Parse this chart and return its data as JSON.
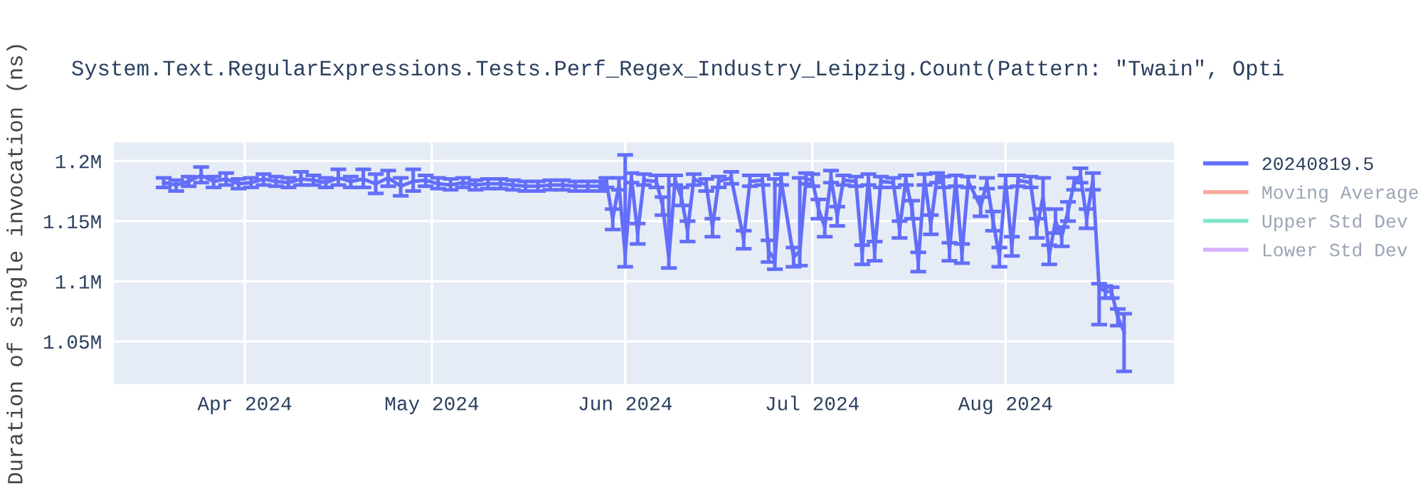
{
  "chart_data": {
    "type": "line",
    "title": "System.Text.RegularExpressions.Tests.Perf_Regex_Industry_Leipzig.Count(Pattern: \"Twain\", Opti",
    "ylabel": "Duration of single invocation (ns)",
    "x": [
      "2024-03-19",
      "2024-03-21",
      "2024-03-23",
      "2024-03-25",
      "2024-03-27",
      "2024-03-29",
      "2024-03-31",
      "2024-04-02",
      "2024-04-04",
      "2024-04-06",
      "2024-04-08",
      "2024-04-10",
      "2024-04-12",
      "2024-04-14",
      "2024-04-16",
      "2024-04-18",
      "2024-04-20",
      "2024-04-22",
      "2024-04-24",
      "2024-04-26",
      "2024-04-28",
      "2024-04-30",
      "2024-05-02",
      "2024-05-04",
      "2024-05-06",
      "2024-05-08",
      "2024-05-10",
      "2024-05-12",
      "2024-05-14",
      "2024-05-16",
      "2024-05-18",
      "2024-05-20",
      "2024-05-22",
      "2024-05-24",
      "2024-05-26",
      "2024-05-28",
      "2024-05-29",
      "2024-05-30",
      "2024-05-31",
      "2024-06-01",
      "2024-06-02",
      "2024-06-03",
      "2024-06-04",
      "2024-06-06",
      "2024-06-07",
      "2024-06-08",
      "2024-06-09",
      "2024-06-10",
      "2024-06-11",
      "2024-06-12",
      "2024-06-14",
      "2024-06-15",
      "2024-06-16",
      "2024-06-18",
      "2024-06-20",
      "2024-06-21",
      "2024-06-23",
      "2024-06-24",
      "2024-06-25",
      "2024-06-26",
      "2024-06-28",
      "2024-06-29",
      "2024-06-30",
      "2024-07-01",
      "2024-07-02",
      "2024-07-03",
      "2024-07-04",
      "2024-07-05",
      "2024-07-06",
      "2024-07-08",
      "2024-07-09",
      "2024-07-10",
      "2024-07-11",
      "2024-07-12",
      "2024-07-14",
      "2024-07-15",
      "2024-07-16",
      "2024-07-17",
      "2024-07-18",
      "2024-07-19",
      "2024-07-20",
      "2024-07-21",
      "2024-07-22",
      "2024-07-23",
      "2024-07-24",
      "2024-07-25",
      "2024-07-26",
      "2024-07-28",
      "2024-07-29",
      "2024-07-30",
      "2024-07-31",
      "2024-08-01",
      "2024-08-02",
      "2024-08-03",
      "2024-08-05",
      "2024-08-06",
      "2024-08-07",
      "2024-08-08",
      "2024-08-09",
      "2024-08-10",
      "2024-08-11",
      "2024-08-12",
      "2024-08-13",
      "2024-08-14",
      "2024-08-15",
      "2024-08-16",
      "2024-08-17",
      "2024-08-18",
      "2024-08-19",
      "2024-08-20"
    ],
    "series": [
      {
        "name": "20240819.5",
        "color": "#636efa",
        "values": [
          1182000,
          1180000,
          1183000,
          1188000,
          1183000,
          1185000,
          1181000,
          1182000,
          1185000,
          1183000,
          1182000,
          1185000,
          1184000,
          1182000,
          1186000,
          1183000,
          1185000,
          1181000,
          1186000,
          1179000,
          1183000,
          1184000,
          1181000,
          1180000,
          1182000,
          1180000,
          1181000,
          1181000,
          1180000,
          1179000,
          1179000,
          1180000,
          1180000,
          1179000,
          1179000,
          1179000,
          1182000,
          1152000,
          1180000,
          1122000,
          1186000,
          1140000,
          1184000,
          1183000,
          1163000,
          1120000,
          1184000,
          1170000,
          1142000,
          1185000,
          1180000,
          1145000,
          1183000,
          1186000,
          1135000,
          1183000,
          1184000,
          1125000,
          1118000,
          1184000,
          1120000,
          1125000,
          1185000,
          1184000,
          1160000,
          1145000,
          1186000,
          1154000,
          1184000,
          1183000,
          1122000,
          1184000,
          1125000,
          1183000,
          1182000,
          1143000,
          1184000,
          1160000,
          1116000,
          1185000,
          1147000,
          1186000,
          1183000,
          1125000,
          1184000,
          1123000,
          1183000,
          1162000,
          1182000,
          1150000,
          1120000,
          1183000,
          1129000,
          1184000,
          1182000,
          1144000,
          1170000,
          1122000,
          1150000,
          1137000,
          1158000,
          1182000,
          1188000,
          1152000,
          1184000,
          1094000,
          1092000,
          1091000,
          1070000,
          1058000
        ],
        "errors": [
          [
            1178000,
            1186000
          ],
          [
            1175000,
            1184000
          ],
          [
            1179000,
            1187000
          ],
          [
            1182000,
            1195000
          ],
          [
            1178000,
            1187000
          ],
          [
            1180000,
            1190000
          ],
          [
            1177000,
            1185000
          ],
          [
            1178000,
            1186000
          ],
          [
            1180000,
            1189000
          ],
          [
            1179000,
            1187000
          ],
          [
            1178000,
            1186000
          ],
          [
            1180000,
            1191000
          ],
          [
            1180000,
            1188000
          ],
          [
            1178000,
            1186000
          ],
          [
            1180000,
            1193000
          ],
          [
            1178000,
            1187000
          ],
          [
            1178000,
            1193000
          ],
          [
            1173000,
            1189000
          ],
          [
            1179000,
            1192000
          ],
          [
            1171000,
            1186000
          ],
          [
            1175000,
            1193000
          ],
          [
            1179000,
            1188000
          ],
          [
            1177000,
            1186000
          ],
          [
            1176000,
            1185000
          ],
          [
            1178000,
            1186000
          ],
          [
            1176000,
            1184000
          ],
          [
            1177000,
            1185000
          ],
          [
            1177000,
            1185000
          ],
          [
            1176000,
            1184000
          ],
          [
            1175000,
            1183000
          ],
          [
            1175000,
            1183000
          ],
          [
            1176000,
            1184000
          ],
          [
            1176000,
            1184000
          ],
          [
            1175000,
            1183000
          ],
          [
            1175000,
            1183000
          ],
          [
            1175000,
            1183000
          ],
          [
            1178000,
            1186000
          ],
          [
            1143000,
            1160000
          ],
          [
            1176000,
            1186000
          ],
          [
            1112000,
            1205000
          ],
          [
            1182000,
            1190000
          ],
          [
            1131000,
            1148000
          ],
          [
            1180000,
            1189000
          ],
          [
            1178000,
            1188000
          ],
          [
            1155000,
            1170000
          ],
          [
            1111000,
            1188000
          ],
          [
            1180000,
            1188000
          ],
          [
            1163000,
            1178000
          ],
          [
            1133000,
            1150000
          ],
          [
            1180000,
            1189000
          ],
          [
            1175000,
            1185000
          ],
          [
            1137000,
            1152000
          ],
          [
            1178000,
            1187000
          ],
          [
            1181000,
            1191000
          ],
          [
            1127000,
            1142000
          ],
          [
            1179000,
            1188000
          ],
          [
            1180000,
            1188000
          ],
          [
            1116000,
            1134000
          ],
          [
            1110000,
            1185000
          ],
          [
            1180000,
            1189000
          ],
          [
            1112000,
            1128000
          ],
          [
            1113000,
            1186000
          ],
          [
            1181000,
            1190000
          ],
          [
            1179000,
            1189000
          ],
          [
            1152000,
            1168000
          ],
          [
            1137000,
            1152000
          ],
          [
            1182000,
            1192000
          ],
          [
            1146000,
            1162000
          ],
          [
            1180000,
            1188000
          ],
          [
            1179000,
            1187000
          ],
          [
            1114000,
            1130000
          ],
          [
            1180000,
            1189000
          ],
          [
            1117000,
            1133000
          ],
          [
            1178000,
            1187000
          ],
          [
            1178000,
            1186000
          ],
          [
            1136000,
            1150000
          ],
          [
            1180000,
            1188000
          ],
          [
            1152000,
            1167000
          ],
          [
            1108000,
            1124000
          ],
          [
            1180000,
            1189000
          ],
          [
            1139000,
            1155000
          ],
          [
            1182000,
            1190000
          ],
          [
            1178000,
            1187000
          ],
          [
            1117000,
            1132000
          ],
          [
            1179000,
            1188000
          ],
          [
            1115000,
            1131000
          ],
          [
            1178000,
            1187000
          ],
          [
            1154000,
            1170000
          ],
          [
            1177000,
            1186000
          ],
          [
            1142000,
            1158000
          ],
          [
            1112000,
            1128000
          ],
          [
            1178000,
            1188000
          ],
          [
            1121000,
            1137000
          ],
          [
            1179000,
            1188000
          ],
          [
            1178000,
            1187000
          ],
          [
            1136000,
            1152000
          ],
          [
            1160000,
            1186000
          ],
          [
            1114000,
            1130000
          ],
          [
            1140000,
            1160000
          ],
          [
            1129000,
            1145000
          ],
          [
            1150000,
            1166000
          ],
          [
            1176000,
            1186000
          ],
          [
            1182000,
            1194000
          ],
          [
            1144000,
            1160000
          ],
          [
            1176000,
            1190000
          ],
          [
            1064000,
            1098000
          ],
          [
            1086000,
            1096000
          ],
          [
            1086000,
            1095000
          ],
          [
            1063000,
            1077000
          ],
          [
            1025000,
            1073000
          ]
        ]
      },
      {
        "name": "Moving Average",
        "color": "#ef553b",
        "values": [
          null,
          null,
          null,
          null,
          null,
          null,
          null,
          null,
          null,
          null,
          null,
          null,
          null,
          null,
          null,
          null,
          null,
          null,
          null,
          null,
          null,
          null,
          null,
          null,
          null,
          null,
          null,
          null,
          null,
          null,
          null,
          null,
          null,
          null,
          null,
          null,
          null,
          null,
          null,
          null,
          null,
          null,
          null,
          null,
          null,
          null,
          null,
          null,
          null,
          null,
          null,
          null,
          null,
          null,
          null,
          null,
          null,
          null,
          null,
          null,
          null,
          null,
          null,
          null,
          null,
          null,
          null,
          null,
          null,
          null,
          null,
          null,
          null,
          null,
          null,
          null,
          null,
          null,
          null,
          null,
          null,
          null,
          null,
          null,
          null,
          null,
          null,
          null,
          null,
          null,
          null,
          null,
          null,
          null,
          null,
          null,
          null,
          null,
          null,
          null,
          null,
          null,
          null,
          null,
          null,
          null,
          null,
          null,
          null,
          null
        ]
      },
      {
        "name": "Upper Std Dev",
        "color": "#00cc96",
        "values": [
          null,
          null,
          null,
          null,
          null,
          null,
          null,
          null,
          null,
          null,
          null,
          null,
          null,
          null,
          null,
          null,
          null,
          null,
          null,
          null,
          null,
          null,
          null,
          null,
          null,
          null,
          null,
          null,
          null,
          null,
          null,
          null,
          null,
          null,
          null,
          null,
          null,
          null,
          null,
          null,
          null,
          null,
          null,
          null,
          null,
          null,
          null,
          null,
          null,
          null,
          null,
          null,
          null,
          null,
          null,
          null,
          null,
          null,
          null,
          null,
          null,
          null,
          null,
          null,
          null,
          null,
          null,
          null,
          null,
          null,
          null,
          null,
          null,
          null,
          null,
          null,
          null,
          null,
          null,
          null,
          null,
          null,
          null,
          null,
          null,
          null,
          null,
          null,
          null,
          null,
          null,
          null,
          null,
          null,
          null,
          null,
          null,
          null,
          null,
          null,
          null,
          null,
          null,
          null,
          null,
          null,
          null,
          null,
          null,
          null
        ]
      },
      {
        "name": "Lower Std Dev",
        "color": "#ab63fa",
        "values": [
          null,
          null,
          null,
          null,
          null,
          null,
          null,
          null,
          null,
          null,
          null,
          null,
          null,
          null,
          null,
          null,
          null,
          null,
          null,
          null,
          null,
          null,
          null,
          null,
          null,
          null,
          null,
          null,
          null,
          null,
          null,
          null,
          null,
          null,
          null,
          null,
          null,
          null,
          null,
          null,
          null,
          null,
          null,
          null,
          null,
          null,
          null,
          null,
          null,
          null,
          null,
          null,
          null,
          null,
          null,
          null,
          null,
          null,
          null,
          null,
          null,
          null,
          null,
          null,
          null,
          null,
          null,
          null,
          null,
          null,
          null,
          null,
          null,
          null,
          null,
          null,
          null,
          null,
          null,
          null,
          null,
          null,
          null,
          null,
          null,
          null,
          null,
          null,
          null,
          null,
          null,
          null,
          null,
          null,
          null,
          null,
          null,
          null,
          null,
          null,
          null,
          null,
          null,
          null,
          null,
          null,
          null,
          null,
          null,
          null
        ]
      }
    ],
    "xlim": [
      "2024-03-11",
      "2024-08-28"
    ],
    "xticks": [
      {
        "value": "2024-04-01",
        "label": "Apr 2024"
      },
      {
        "value": "2024-05-01",
        "label": "May 2024"
      },
      {
        "value": "2024-06-01",
        "label": "Jun 2024"
      },
      {
        "value": "2024-07-01",
        "label": "Jul 2024"
      },
      {
        "value": "2024-08-01",
        "label": "Aug 2024"
      }
    ],
    "ylim": [
      1014600,
      1215400
    ],
    "yticks": [
      {
        "value": 1050000,
        "label": "1.05M"
      },
      {
        "value": 1100000,
        "label": "1.1M"
      },
      {
        "value": 1150000,
        "label": "1.15M"
      },
      {
        "value": 1200000,
        "label": "1.2M"
      }
    ],
    "grid": true,
    "legend": "top right",
    "marker": "none",
    "line_style": "solid"
  }
}
